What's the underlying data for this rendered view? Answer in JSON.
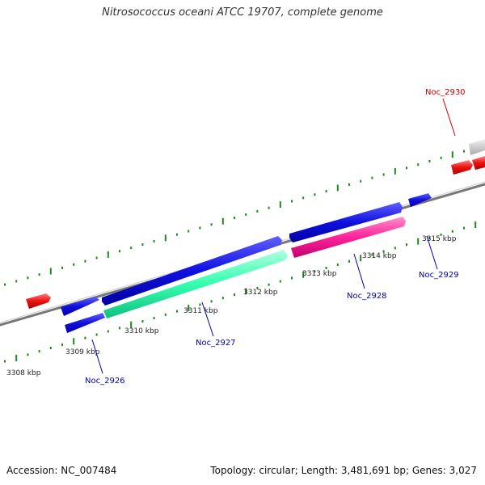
{
  "title": "Nitrosococcus oceani ATCC 19707, complete genome",
  "footer": {
    "accession": "Accession: NC_007484",
    "topology": "Topology: circular; Length: 3,481,691 bp; Genes: 3,027"
  },
  "colors": {
    "backbone": "#888888",
    "ticks": "#1a8a1a",
    "forward_gene": "#1010e0",
    "reverse_gene": "#1010e0",
    "rna_gene": "#ee1111",
    "pseudo_gene": "#bbbbbb",
    "highlight_cyan": "#33ffb0",
    "highlight_magenta": "#ff2299"
  },
  "scale_labels": [
    "3308 kbp",
    "3309 kbp",
    "3310 kbp",
    "3311 kbp",
    "3312 kbp",
    "3313 kbp",
    "3314 kbp",
    "3315 kbp"
  ],
  "gene_labels": [
    {
      "name": "Noc_2926",
      "color": "#0000aa"
    },
    {
      "name": "Noc_2927",
      "color": "#0000aa"
    },
    {
      "name": "Noc_2928",
      "color": "#0000aa"
    },
    {
      "name": "Noc_2929",
      "color": "#0000aa"
    },
    {
      "name": "Noc_2930",
      "color": "#cc0000"
    }
  ]
}
